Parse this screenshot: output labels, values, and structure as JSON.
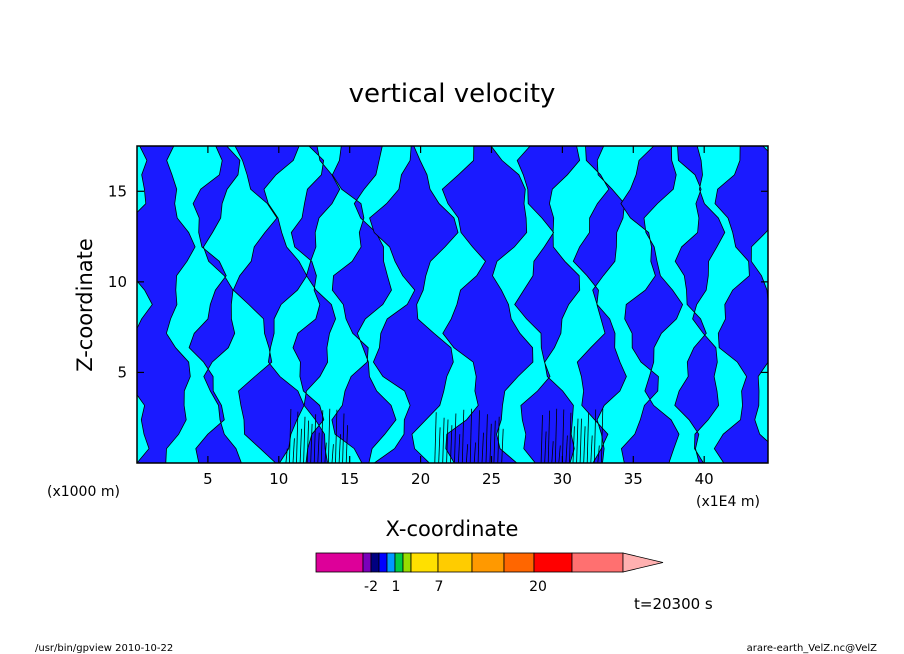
{
  "chart_data": {
    "type": "heatmap",
    "title": "vertical velocity",
    "xlabel": "X-coordinate",
    "ylabel": "Z-coordinate",
    "x_unit": "(x1E4 m)",
    "y_unit": "(x1000 m)",
    "xlim": [
      0,
      44.5
    ],
    "ylim": [
      0,
      17.5
    ],
    "x_ticks": [
      "5",
      "10",
      "15",
      "20",
      "25",
      "30",
      "35",
      "40"
    ],
    "y_ticks": [
      "5",
      "10",
      "15"
    ],
    "colorbar": {
      "colors": [
        "#dd0099",
        "#7a00bb",
        "#000080",
        "#0000ff",
        "#0099ff",
        "#00cc44",
        "#99dd00",
        "#ffe000",
        "#ffcc00",
        "#ff9900",
        "#ff6600",
        "#ff0000",
        "#ff7070",
        "#ffb0b0"
      ],
      "tick_labels": [
        "-2",
        "1",
        "7",
        "20"
      ]
    },
    "field_colors": {
      "low": "#1a1aff",
      "high": "#00ffff",
      "contour": "#000000"
    },
    "time_label": "t=20300 s"
  },
  "footer": {
    "left": "/usr/bin/gpview   2010-10-22",
    "right": "arare-earth_VelZ.nc@VelZ"
  }
}
